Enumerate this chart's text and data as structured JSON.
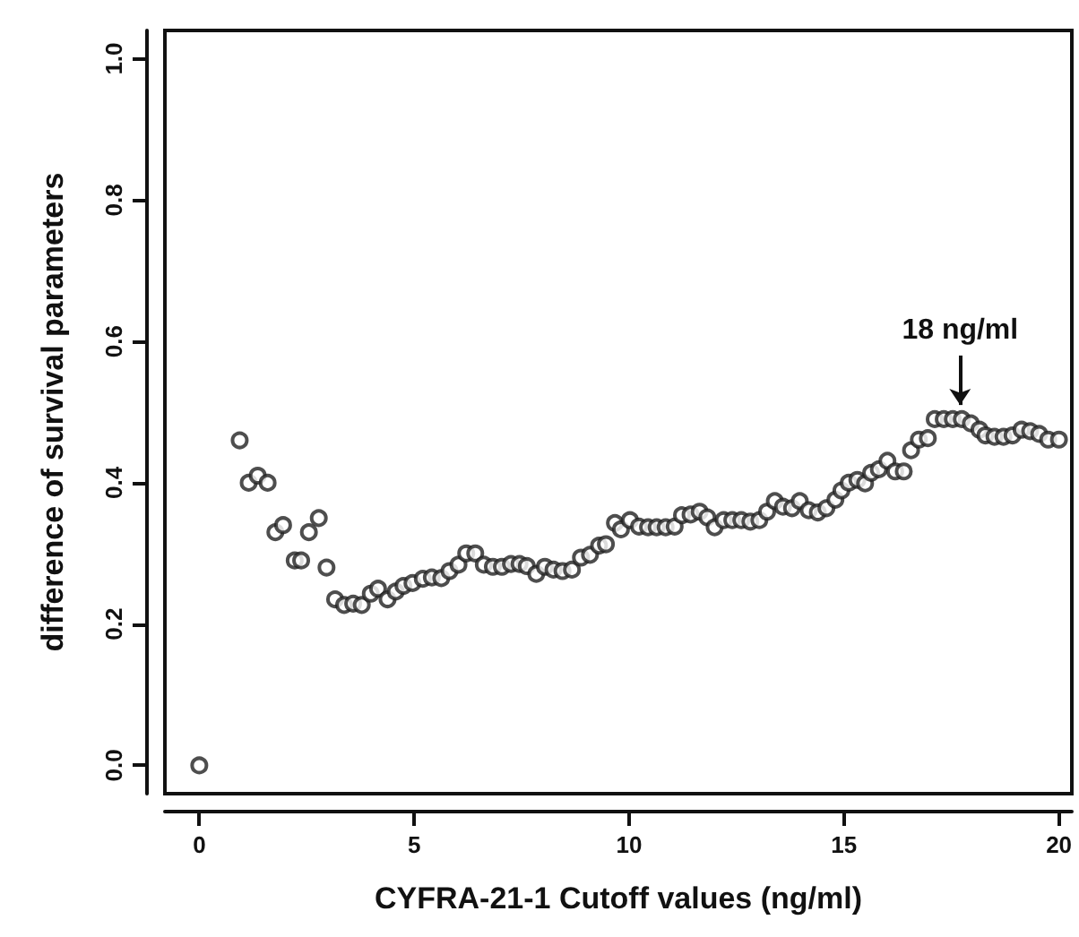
{
  "chart_data": {
    "type": "scatter",
    "xlabel": "CYFRA-21-1 Cutoff values (ng/ml)",
    "ylabel": "difference of survival parameters",
    "series": [
      {
        "color": "#222222",
        "x": [
          0,
          0.94,
          1.15,
          1.36,
          1.59,
          1.77,
          1.95,
          2.22,
          2.37,
          2.55,
          2.78,
          2.96,
          3.16,
          3.37,
          3.58,
          3.78,
          3.99,
          4.16,
          4.38,
          4.57,
          4.75,
          4.96,
          5.2,
          5.41,
          5.63,
          5.82,
          6.03,
          6.21,
          6.42,
          6.62,
          6.83,
          7.04,
          7.25,
          7.45,
          7.62,
          7.84,
          8.04,
          8.24,
          8.45,
          8.67,
          8.88,
          9.09,
          9.3,
          9.46,
          9.67,
          9.81,
          10.02,
          10.23,
          10.44,
          10.64,
          10.85,
          11.06,
          11.23,
          11.43,
          11.64,
          11.82,
          11.99,
          12.2,
          12.4,
          12.61,
          12.82,
          13.03,
          13.21,
          13.39,
          13.58,
          13.79,
          13.97,
          14.18,
          14.39,
          14.59,
          14.8,
          14.94,
          15.11,
          15.31,
          15.49,
          15.63,
          15.81,
          16.01,
          16.19,
          16.39,
          16.56,
          16.74,
          16.95,
          17.11,
          17.32,
          17.53,
          17.74,
          17.95,
          18.15,
          18.29,
          18.5,
          18.71,
          18.92,
          19.13,
          19.33,
          19.54,
          19.75,
          20.0
        ],
        "values": [
          0.0,
          0.46,
          0.4,
          0.41,
          0.4,
          0.33,
          0.34,
          0.29,
          0.29,
          0.33,
          0.35,
          0.28,
          0.235,
          0.227,
          0.229,
          0.227,
          0.243,
          0.25,
          0.235,
          0.246,
          0.254,
          0.258,
          0.264,
          0.266,
          0.265,
          0.275,
          0.284,
          0.3,
          0.3,
          0.284,
          0.281,
          0.281,
          0.285,
          0.285,
          0.282,
          0.271,
          0.281,
          0.277,
          0.275,
          0.277,
          0.294,
          0.298,
          0.311,
          0.313,
          0.343,
          0.334,
          0.347,
          0.338,
          0.337,
          0.337,
          0.337,
          0.338,
          0.354,
          0.355,
          0.359,
          0.351,
          0.337,
          0.347,
          0.347,
          0.347,
          0.345,
          0.347,
          0.359,
          0.374,
          0.366,
          0.364,
          0.374,
          0.361,
          0.358,
          0.364,
          0.376,
          0.389,
          0.4,
          0.404,
          0.399,
          0.414,
          0.419,
          0.431,
          0.416,
          0.416,
          0.446,
          0.461,
          0.463,
          0.49,
          0.49,
          0.49,
          0.49,
          0.484,
          0.475,
          0.467,
          0.465,
          0.465,
          0.467,
          0.475,
          0.473,
          0.469,
          0.461,
          0.461
        ]
      }
    ],
    "xlim": [
      -0.8,
      20.3
    ],
    "ylim": [
      -0.04,
      1.04
    ],
    "xticks": [
      0,
      5,
      10,
      15,
      20
    ],
    "yticks": [
      {
        "value": 0,
        "label": "0.0"
      },
      {
        "value": 0.2,
        "label": "0.2"
      },
      {
        "value": 0.4,
        "label": "0.4"
      },
      {
        "value": 0.6,
        "label": "0.6"
      },
      {
        "value": 0.8,
        "label": "0.8"
      },
      {
        "value": 1,
        "label": "1.0"
      }
    ],
    "grid": false,
    "marker": "circle",
    "annotations": [
      {
        "text": "18 ng/ml",
        "x": 17.7,
        "y": 0.49
      }
    ]
  }
}
